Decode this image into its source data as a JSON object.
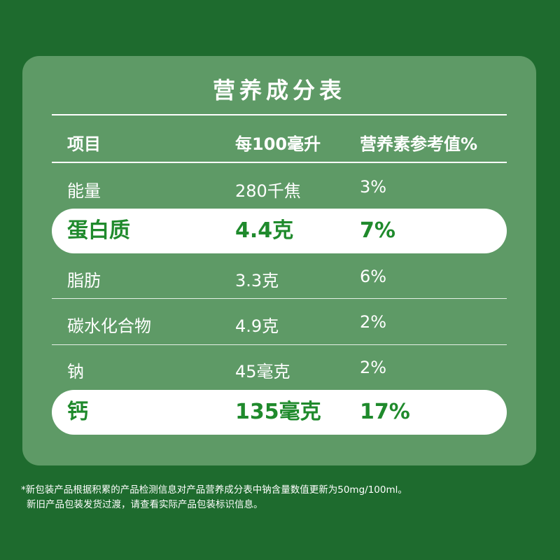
{
  "table": {
    "title": "营养成分表",
    "header": {
      "item": "项目",
      "per100": "每100毫升",
      "nrv": "营养素参考值%"
    },
    "rows": [
      {
        "item": "能量",
        "per100": "280千焦",
        "nrv": "3%",
        "highlight": false
      },
      {
        "item": "蛋白质",
        "per100": "4.4克",
        "nrv": "7%",
        "highlight": true
      },
      {
        "item": "脂肪",
        "per100": "3.3克",
        "nrv": "6%",
        "highlight": false
      },
      {
        "item": "碳水化合物",
        "per100": "4.9克",
        "nrv": "2%",
        "highlight": false
      },
      {
        "item": "钠",
        "per100": "45毫克",
        "nrv": "2%",
        "highlight": false
      },
      {
        "item": "钙",
        "per100": "135毫克",
        "nrv": "17%",
        "highlight": true
      }
    ]
  },
  "footnote": {
    "line1": "*新包装产品根据积累的产品检测信息对产品营养成分表中钠含量数值更新为50mg/100ml。",
    "line2": "新旧产品包装发货过渡，请查看实际产品包装标识信息。"
  },
  "colors": {
    "background": "#1e6b2e",
    "card": "#5e9a66",
    "highlight_text": "#1f8a2c"
  }
}
